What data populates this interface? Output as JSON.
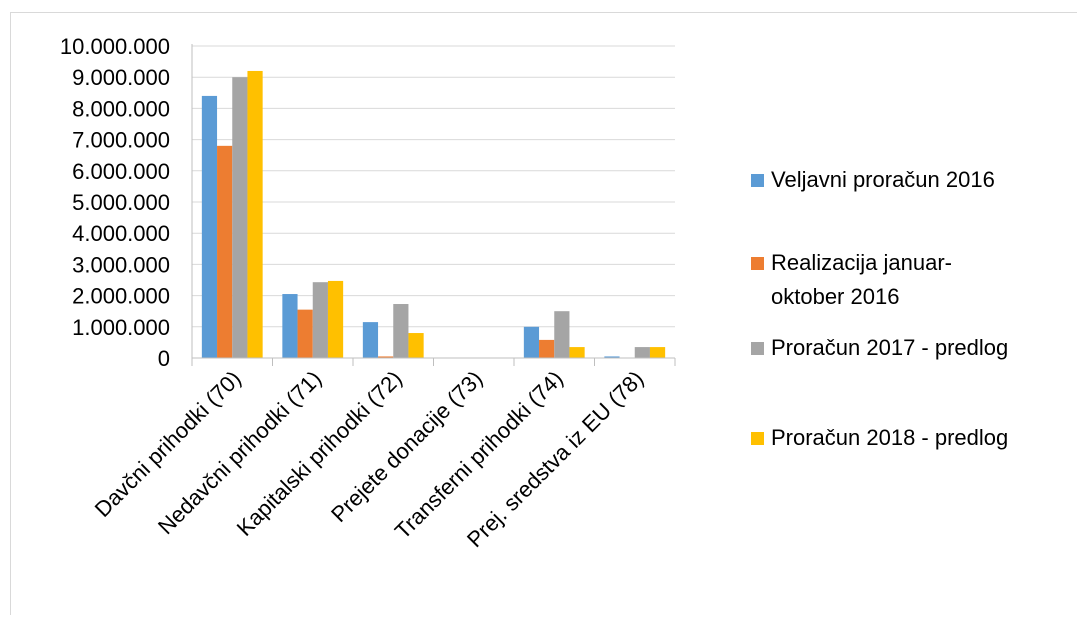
{
  "chart_data": {
    "type": "bar",
    "categories": [
      "Davčni prihodki (70)",
      "Nedavčni prihodki (71)",
      "Kapitalski prihodki (72)",
      "Prejete donacije (73)",
      "Transferni prihodki (74)",
      "Prej. sredstva iz EU (78)"
    ],
    "series": [
      {
        "name": "Veljavni proračun  2016",
        "legend_lines": [
          "Veljavni proračun  2016"
        ],
        "color": "#5b9bd5",
        "values": [
          8400000,
          2050000,
          1150000,
          0,
          1000000,
          50000
        ]
      },
      {
        "name": "Realizacija januar-oktober 2016",
        "legend_lines": [
          "Realizacija januar-",
          "oktober 2016"
        ],
        "color": "#ed7d31",
        "values": [
          6800000,
          1550000,
          50000,
          0,
          580000,
          0
        ]
      },
      {
        "name": "Proračun 2017 - predlog",
        "legend_lines": [
          "Proračun 2017 - predlog"
        ],
        "color": "#a5a5a5",
        "values": [
          9000000,
          2430000,
          1730000,
          0,
          1500000,
          350000
        ]
      },
      {
        "name": "Proračun 2018 - predlog",
        "legend_lines": [
          "Proračun 2018 - predlog"
        ],
        "color": "#ffc000",
        "values": [
          9200000,
          2470000,
          800000,
          0,
          350000,
          350000
        ]
      }
    ],
    "ylim": [
      0,
      10000000
    ],
    "yticks": [
      0,
      1000000,
      2000000,
      3000000,
      4000000,
      5000000,
      6000000,
      7000000,
      8000000,
      9000000,
      10000000
    ],
    "ytick_labels": [
      "0",
      "1.000.000",
      "2.000.000",
      "3.000.000",
      "4.000.000",
      "5.000.000",
      "6.000.000",
      "7.000.000",
      "8.000.000",
      "9.000.000",
      "10.000.000"
    ],
    "grid": true,
    "legend_position": "right",
    "title": "",
    "xlabel": "",
    "ylabel": ""
  }
}
